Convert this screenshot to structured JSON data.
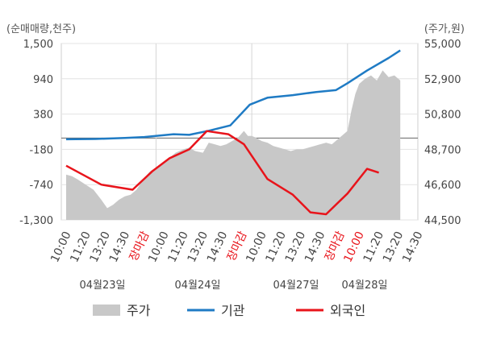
{
  "chart_data": {
    "type": "line",
    "left_axis_title": "(순매매량,천주)",
    "right_axis_title": "(주가,원)",
    "left_ticks": [
      "1,500",
      "940",
      "380",
      "-180",
      "-740",
      "-1,300"
    ],
    "left_tick_values": [
      1500,
      940,
      380,
      -180,
      -740,
      -1300
    ],
    "right_ticks": [
      "55,000",
      "52,900",
      "50,800",
      "48,700",
      "46,600",
      "44,500"
    ],
    "right_tick_values": [
      55000,
      52900,
      50800,
      48700,
      46600,
      44500
    ],
    "left_ylim": [
      -1300,
      1500
    ],
    "right_ylim": [
      44500,
      55000
    ],
    "x_tick_labels": [
      "10:00",
      "11:20",
      "13:20",
      "14:30",
      "장마감",
      "10:00",
      "11:20",
      "13:20",
      "14:30",
      "장마감",
      "10:00",
      "11:20",
      "13:20",
      "14:30",
      "장마감",
      "10:00",
      "11:20",
      "13:20",
      "14:30"
    ],
    "x_tick_highlight": [
      false,
      false,
      false,
      false,
      true,
      false,
      false,
      false,
      false,
      true,
      false,
      false,
      false,
      false,
      true,
      true,
      false,
      false,
      false
    ],
    "day_labels": [
      "04월23일",
      "04월24일",
      "04월27일",
      "04월28일"
    ],
    "session_separators_index": [
      4.6,
      9.5,
      14.4
    ],
    "legend": [
      {
        "label": "주가",
        "color": "#c8c8c8",
        "kind": "area"
      },
      {
        "label": "기관",
        "color": "#1f7bc4",
        "kind": "line"
      },
      {
        "label": "외국인",
        "color": "#e8141b",
        "kind": "line"
      }
    ],
    "series": [
      {
        "name": "기관",
        "color": "#1f7bc4",
        "x_index": [
          0,
          1.5,
          3,
          4,
          5.5,
          6.3,
          7.3,
          8.4,
          9.4,
          10.3,
          11.6,
          12.8,
          13.8,
          14.4,
          15.4,
          16.5,
          17.1
        ],
        "values": [
          -20,
          -15,
          0,
          15,
          60,
          50,
          115,
          200,
          530,
          640,
          680,
          730,
          760,
          870,
          1070,
          1270,
          1390
        ]
      },
      {
        "name": "외국인",
        "color": "#e8141b",
        "x_index": [
          0,
          1.8,
          3.4,
          4.4,
          5.3,
          6.3,
          7.2,
          8.3,
          9.1,
          10.3,
          11.6,
          12.5,
          13.3,
          14.4,
          15.4,
          16.0
        ],
        "values": [
          -440,
          -740,
          -820,
          -530,
          -320,
          -180,
          110,
          60,
          -100,
          -650,
          -900,
          -1180,
          -1210,
          -880,
          -490,
          -550
        ]
      }
    ],
    "price": {
      "name": "주가",
      "color": "#c8c8c8",
      "x_index": [
        0,
        0.3,
        0.6,
        1.0,
        1.4,
        1.8,
        2.1,
        2.4,
        2.7,
        3.0,
        3.3,
        3.6,
        4.0,
        4.3,
        4.6,
        5.0,
        5.3,
        5.6,
        6.0,
        6.3,
        6.6,
        7.0,
        7.3,
        7.6,
        7.9,
        8.2,
        8.5,
        8.8,
        9.1,
        9.3,
        9.5,
        9.7,
        10.0,
        10.3,
        10.6,
        10.9,
        11.2,
        11.5,
        11.8,
        12.1,
        12.4,
        12.7,
        13.0,
        13.3,
        13.6,
        13.9,
        14.2,
        14.4,
        14.6,
        14.8,
        15.0,
        15.3,
        15.6,
        15.9,
        16.2,
        16.5,
        16.8,
        17.0,
        17.1
      ],
      "values": [
        47.2,
        47.1,
        46.9,
        46.6,
        46.3,
        45.7,
        45.2,
        45.4,
        45.7,
        45.9,
        46.0,
        46.3,
        47.0,
        47.4,
        47.6,
        47.9,
        48.2,
        48.5,
        48.7,
        48.8,
        48.6,
        48.5,
        49.1,
        49.0,
        48.9,
        49.0,
        49.2,
        49.4,
        49.8,
        49.5,
        49.5,
        49.4,
        49.2,
        49.1,
        48.9,
        48.8,
        48.7,
        48.6,
        48.7,
        48.7,
        48.8,
        48.9,
        49.0,
        49.1,
        49.0,
        49.3,
        49.6,
        49.8,
        51.0,
        52.0,
        52.6,
        52.9,
        53.1,
        52.8,
        53.4,
        53.0,
        53.1,
        52.9,
        52.8
      ]
    }
  }
}
